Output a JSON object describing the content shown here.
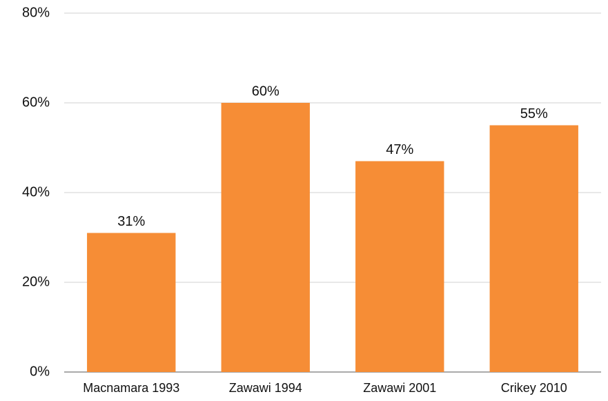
{
  "chart_data": {
    "type": "bar",
    "categories": [
      "Macnamara 1993",
      "Zawawi 1994",
      "Zawawi 2001",
      "Crikey 2010"
    ],
    "values": [
      31,
      60,
      47,
      55
    ],
    "value_labels": [
      "31%",
      "60%",
      "47%",
      "55%"
    ],
    "color": "#f68d36",
    "ylim": [
      0,
      80
    ],
    "yticks": [
      {
        "value": 0,
        "label": "0%"
      },
      {
        "value": 20,
        "label": "20%"
      },
      {
        "value": 40,
        "label": "40%"
      },
      {
        "value": 60,
        "label": "60%"
      },
      {
        "value": 80,
        "label": "80%"
      }
    ],
    "grid": true
  }
}
